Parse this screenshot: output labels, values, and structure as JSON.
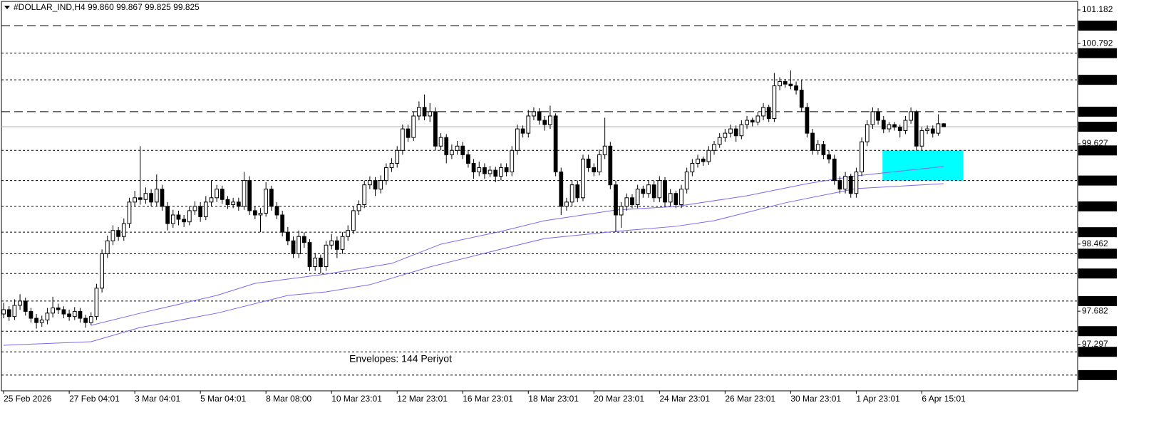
{
  "chart_data": {
    "type": "candlestick",
    "title": "#DOLLAR_IND,H4  99.860 99.867 99.825 99.825",
    "annotation": "Envelopes: 144 Periyot",
    "annotation_color": "#8b1a8b",
    "xlim": [
      -0.4,
      196.5
    ],
    "ylim": [
      96.757,
      101.281
    ],
    "xticks": [
      {
        "value": 0,
        "label": "25 Feb 2026"
      },
      {
        "value": 12,
        "label": "27 Feb 04:01"
      },
      {
        "value": 24,
        "label": "3 Mar 04:01"
      },
      {
        "value": 36,
        "label": "5 Mar 04:01"
      },
      {
        "value": 48,
        "label": "8 Mar 08:00"
      },
      {
        "value": 60,
        "label": "10 Mar 23:01"
      },
      {
        "value": 72,
        "label": "12 Mar 23:01"
      },
      {
        "value": 84,
        "label": "16 Mar 23:01"
      },
      {
        "value": 96,
        "label": "18 Mar 23:01"
      },
      {
        "value": 108,
        "label": "20 Mar 23:01"
      },
      {
        "value": 120,
        "label": "24 Mar 23:01"
      },
      {
        "value": 132,
        "label": "26 Mar 23:01"
      },
      {
        "value": 144,
        "label": "30 Mar 23:01"
      },
      {
        "value": 156,
        "label": "1 Apr 23:01"
      },
      {
        "value": 168,
        "label": "6 Apr 15:01"
      }
    ],
    "yticks": [
      101.182,
      100.792,
      99.627,
      98.462,
      97.682,
      97.297
    ],
    "levels": [
      {
        "value": 101,
        "label": "101.000",
        "style": "long-dash"
      },
      {
        "value": 100.68,
        "label": "100.680",
        "style": "short-dash"
      },
      {
        "value": 100.37,
        "label": "100.370",
        "style": "short-dash"
      },
      {
        "value": 100,
        "label": "100.000",
        "style": "long-dash"
      },
      {
        "value": 99.55,
        "label": "99.550",
        "style": "short-dash"
      },
      {
        "value": 99.2,
        "label": "99.200",
        "style": "short-dash"
      },
      {
        "value": 98.9,
        "label": "98.900",
        "style": "short-dash"
      },
      {
        "value": 98.6,
        "label": "98.600",
        "style": "short-dash"
      },
      {
        "value": 98.35,
        "label": "98.350",
        "style": "short-dash"
      },
      {
        "value": 98.12,
        "label": "98.120",
        "style": "short-dash"
      },
      {
        "value": 97.8,
        "label": "97.800",
        "style": "short-dash"
      },
      {
        "value": 97.45,
        "label": "97.450",
        "style": "short-dash"
      },
      {
        "value": 97.21,
        "label": "97.210",
        "style": "short-dash"
      },
      {
        "value": 96.94,
        "label": "96.940",
        "style": "short-dash"
      }
    ],
    "current_price": 99.825,
    "up_color": "#ffffff",
    "down_color": "#000000",
    "zone": {
      "color": "#00ffff",
      "x": [
        160.8,
        175.6
      ],
      "y": [
        99.2,
        99.55
      ]
    },
    "envelopes": [
      {
        "color": "#7b68ee",
        "x": [
          16,
          25,
          39,
          46,
          59,
          71,
          80,
          91,
          99,
          112,
          123,
          136,
          147,
          156,
          172
        ],
        "values": [
          97.518,
          97.659,
          97.865,
          98.006,
          98.113,
          98.237,
          98.461,
          98.61,
          98.734,
          98.858,
          98.899,
          99.023,
          99.164,
          99.255,
          99.363
        ]
      },
      {
        "color": "#7b68ee",
        "x": [
          0,
          16,
          25,
          39,
          52,
          59,
          67,
          78,
          91,
          99,
          112,
          123,
          130,
          143,
          156,
          172
        ],
        "values": [
          97.286,
          97.328,
          97.493,
          97.659,
          97.865,
          97.907,
          97.99,
          98.197,
          98.403,
          98.527,
          98.61,
          98.668,
          98.734,
          98.941,
          99.107,
          99.164
        ]
      }
    ],
    "ohlc": [
      [
        97.65,
        97.78,
        97.6,
        97.7
      ],
      [
        97.7,
        97.74,
        97.57,
        97.62
      ],
      [
        97.62,
        97.82,
        97.58,
        97.75
      ],
      [
        97.75,
        97.88,
        97.7,
        97.8
      ],
      [
        97.8,
        97.84,
        97.63,
        97.68
      ],
      [
        97.68,
        97.72,
        97.55,
        97.6
      ],
      [
        97.6,
        97.65,
        97.48,
        97.55
      ],
      [
        97.55,
        97.63,
        97.5,
        97.58
      ],
      [
        97.58,
        97.72,
        97.53,
        97.66
      ],
      [
        97.66,
        97.85,
        97.61,
        97.72
      ],
      [
        97.72,
        97.77,
        97.65,
        97.7
      ],
      [
        97.7,
        97.74,
        97.6,
        97.65
      ],
      [
        97.65,
        97.7,
        97.57,
        97.62
      ],
      [
        97.62,
        97.73,
        97.58,
        97.68
      ],
      [
        97.68,
        97.72,
        97.55,
        97.6
      ],
      [
        97.6,
        97.64,
        97.49,
        97.55
      ],
      [
        97.55,
        97.67,
        97.52,
        97.62
      ],
      [
        97.62,
        98.0,
        97.58,
        97.95
      ],
      [
        97.95,
        98.4,
        97.9,
        98.35
      ],
      [
        98.35,
        98.56,
        98.3,
        98.5
      ],
      [
        98.5,
        98.68,
        98.45,
        98.62
      ],
      [
        98.62,
        98.66,
        98.5,
        98.55
      ],
      [
        98.55,
        98.76,
        98.5,
        98.7
      ],
      [
        98.7,
        99.0,
        98.65,
        98.95
      ],
      [
        98.95,
        99.08,
        98.9,
        99.0
      ],
      [
        99.0,
        99.6,
        98.92,
        98.98
      ],
      [
        98.98,
        99.12,
        98.93,
        99.05
      ],
      [
        99.05,
        99.1,
        98.9,
        98.95
      ],
      [
        98.95,
        99.27,
        98.9,
        99.1
      ],
      [
        99.1,
        99.15,
        98.85,
        98.9
      ],
      [
        98.9,
        98.95,
        98.62,
        98.7
      ],
      [
        98.7,
        98.86,
        98.65,
        98.8
      ],
      [
        98.8,
        98.85,
        98.68,
        98.75
      ],
      [
        98.75,
        98.8,
        98.66,
        98.72
      ],
      [
        98.72,
        98.9,
        98.68,
        98.85
      ],
      [
        98.85,
        98.96,
        98.8,
        98.9
      ],
      [
        98.9,
        98.95,
        98.72,
        98.78
      ],
      [
        98.78,
        99.02,
        98.74,
        98.95
      ],
      [
        98.95,
        99.2,
        98.9,
        99.0
      ],
      [
        99.0,
        99.15,
        98.95,
        99.1
      ],
      [
        99.1,
        99.14,
        98.93,
        98.98
      ],
      [
        98.98,
        99.02,
        98.87,
        98.92
      ],
      [
        98.92,
        99.0,
        98.88,
        98.95
      ],
      [
        98.95,
        99.0,
        98.85,
        98.9
      ],
      [
        98.9,
        99.3,
        98.86,
        99.2
      ],
      [
        99.2,
        99.25,
        98.8,
        98.85
      ],
      [
        98.85,
        98.9,
        98.75,
        98.8
      ],
      [
        98.8,
        98.88,
        98.6,
        98.82
      ],
      [
        98.82,
        99.18,
        98.78,
        99.1
      ],
      [
        99.1,
        99.14,
        98.85,
        98.9
      ],
      [
        98.9,
        98.95,
        98.75,
        98.8
      ],
      [
        98.8,
        98.85,
        98.55,
        98.6
      ],
      [
        98.6,
        98.66,
        98.45,
        98.5
      ],
      [
        98.5,
        98.55,
        98.3,
        98.35
      ],
      [
        98.35,
        98.62,
        98.3,
        98.55
      ],
      [
        98.55,
        98.6,
        98.42,
        98.48
      ],
      [
        98.48,
        98.52,
        98.15,
        98.2
      ],
      [
        98.2,
        98.36,
        98.15,
        98.3
      ],
      [
        98.3,
        98.34,
        98.12,
        98.2
      ],
      [
        98.2,
        98.5,
        98.15,
        98.45
      ],
      [
        98.45,
        98.58,
        98.4,
        98.5
      ],
      [
        98.5,
        98.55,
        98.3,
        98.4
      ],
      [
        98.4,
        98.6,
        98.35,
        98.55
      ],
      [
        98.55,
        98.68,
        98.5,
        98.62
      ],
      [
        98.62,
        98.9,
        98.58,
        98.85
      ],
      [
        98.85,
        98.97,
        98.8,
        98.92
      ],
      [
        98.92,
        99.2,
        98.88,
        99.15
      ],
      [
        99.15,
        99.25,
        99.1,
        99.2
      ],
      [
        99.2,
        99.24,
        99.02,
        99.1
      ],
      [
        99.1,
        99.26,
        99.05,
        99.2
      ],
      [
        99.2,
        99.4,
        99.15,
        99.35
      ],
      [
        99.35,
        99.46,
        99.3,
        99.4
      ],
      [
        99.4,
        99.6,
        99.35,
        99.55
      ],
      [
        99.55,
        99.85,
        99.5,
        99.8
      ],
      [
        99.8,
        99.85,
        99.65,
        99.7
      ],
      [
        99.7,
        100.0,
        99.66,
        99.95
      ],
      [
        99.95,
        100.12,
        99.9,
        100.05
      ],
      [
        100.05,
        100.2,
        99.9,
        99.95
      ],
      [
        99.95,
        100.1,
        99.88,
        100.0
      ],
      [
        100.0,
        100.05,
        99.55,
        99.6
      ],
      [
        99.6,
        99.75,
        99.55,
        99.7
      ],
      [
        99.7,
        99.74,
        99.4,
        99.5
      ],
      [
        99.5,
        99.62,
        99.45,
        99.55
      ],
      [
        99.55,
        99.66,
        99.5,
        99.6
      ],
      [
        99.6,
        99.65,
        99.45,
        99.5
      ],
      [
        99.5,
        99.55,
        99.35,
        99.4
      ],
      [
        99.4,
        99.45,
        99.22,
        99.3
      ],
      [
        99.3,
        99.42,
        99.25,
        99.35
      ],
      [
        99.35,
        99.4,
        99.22,
        99.28
      ],
      [
        99.28,
        99.37,
        99.24,
        99.32
      ],
      [
        99.32,
        99.36,
        99.18,
        99.25
      ],
      [
        99.25,
        99.4,
        99.2,
        99.35
      ],
      [
        99.35,
        99.4,
        99.25,
        99.3
      ],
      [
        99.3,
        99.6,
        99.25,
        99.55
      ],
      [
        99.55,
        99.85,
        99.5,
        99.8
      ],
      [
        99.8,
        99.84,
        99.7,
        99.75
      ],
      [
        99.75,
        100.02,
        99.7,
        99.95
      ],
      [
        99.95,
        100.05,
        99.9,
        100.0
      ],
      [
        100.0,
        100.04,
        99.85,
        99.9
      ],
      [
        99.9,
        99.95,
        99.78,
        99.85
      ],
      [
        99.85,
        100.07,
        99.8,
        99.95
      ],
      [
        99.95,
        99.98,
        99.25,
        99.3
      ],
      [
        99.3,
        99.35,
        98.8,
        98.9
      ],
      [
        98.9,
        99.0,
        98.85,
        98.95
      ],
      [
        98.95,
        99.2,
        98.9,
        99.15
      ],
      [
        99.15,
        99.2,
        98.95,
        99.0
      ],
      [
        99.0,
        99.5,
        98.96,
        99.45
      ],
      [
        99.45,
        99.5,
        99.3,
        99.35
      ],
      [
        99.35,
        99.4,
        99.25,
        99.3
      ],
      [
        99.3,
        99.56,
        99.26,
        99.5
      ],
      [
        99.5,
        99.93,
        99.45,
        99.6
      ],
      [
        99.6,
        99.65,
        99.1,
        99.15
      ],
      [
        99.15,
        99.2,
        98.6,
        98.8
      ],
      [
        98.8,
        98.95,
        98.65,
        98.9
      ],
      [
        98.9,
        99.05,
        98.85,
        99.0
      ],
      [
        99.0,
        99.04,
        98.88,
        98.92
      ],
      [
        98.92,
        99.15,
        98.88,
        99.1
      ],
      [
        99.1,
        99.14,
        99.0,
        99.05
      ],
      [
        99.05,
        99.2,
        99.0,
        99.15
      ],
      [
        99.15,
        99.2,
        98.95,
        99.0
      ],
      [
        99.0,
        99.25,
        98.95,
        99.2
      ],
      [
        99.2,
        99.24,
        98.9,
        98.95
      ],
      [
        98.95,
        99.1,
        98.9,
        99.05
      ],
      [
        99.05,
        99.08,
        98.88,
        98.92
      ],
      [
        98.92,
        99.15,
        98.88,
        99.1
      ],
      [
        99.1,
        99.35,
        99.05,
        99.3
      ],
      [
        99.3,
        99.45,
        99.25,
        99.4
      ],
      [
        99.4,
        99.5,
        99.35,
        99.45
      ],
      [
        99.45,
        99.48,
        99.37,
        99.42
      ],
      [
        99.42,
        99.6,
        99.38,
        99.55
      ],
      [
        99.55,
        99.66,
        99.5,
        99.62
      ],
      [
        99.62,
        99.75,
        99.58,
        99.7
      ],
      [
        99.7,
        99.8,
        99.65,
        99.75
      ],
      [
        99.75,
        99.85,
        99.7,
        99.8
      ],
      [
        99.8,
        99.84,
        99.65,
        99.72
      ],
      [
        99.72,
        99.9,
        99.68,
        99.85
      ],
      [
        99.85,
        99.95,
        99.8,
        99.9
      ],
      [
        99.9,
        99.93,
        99.83,
        99.88
      ],
      [
        99.88,
        100.0,
        99.84,
        99.95
      ],
      [
        99.95,
        100.1,
        99.9,
        100.05
      ],
      [
        100.05,
        100.08,
        99.88,
        99.92
      ],
      [
        99.92,
        100.45,
        99.88,
        100.3
      ],
      [
        100.3,
        100.4,
        100.25,
        100.35
      ],
      [
        100.35,
        100.38,
        100.28,
        100.32
      ],
      [
        100.32,
        100.48,
        100.26,
        100.3
      ],
      [
        100.3,
        100.35,
        100.2,
        100.25
      ],
      [
        100.25,
        100.37,
        100.0,
        100.05
      ],
      [
        100.05,
        100.1,
        99.7,
        99.75
      ],
      [
        99.75,
        99.8,
        99.5,
        99.55
      ],
      [
        99.55,
        99.67,
        99.5,
        99.62
      ],
      [
        99.62,
        99.66,
        99.45,
        99.5
      ],
      [
        99.5,
        99.55,
        99.4,
        99.45
      ],
      [
        99.45,
        99.5,
        99.15,
        99.2
      ],
      [
        99.2,
        99.25,
        99.05,
        99.1
      ],
      [
        99.1,
        99.3,
        99.05,
        99.25
      ],
      [
        99.25,
        99.28,
        99.0,
        99.05
      ],
      [
        99.05,
        99.35,
        99.0,
        99.3
      ],
      [
        99.3,
        99.7,
        99.25,
        99.65
      ],
      [
        99.65,
        99.9,
        99.6,
        99.85
      ],
      [
        99.85,
        100.05,
        99.8,
        100.0
      ],
      [
        100.0,
        100.04,
        99.85,
        99.9
      ],
      [
        99.9,
        99.95,
        99.75,
        99.8
      ],
      [
        99.8,
        99.88,
        99.76,
        99.85
      ],
      [
        99.85,
        99.88,
        99.78,
        99.82
      ],
      [
        99.82,
        99.85,
        99.7,
        99.78
      ],
      [
        99.78,
        99.95,
        99.74,
        99.9
      ],
      [
        99.9,
        100.05,
        99.86,
        100.0
      ],
      [
        100.0,
        100.02,
        99.55,
        99.6
      ],
      [
        99.6,
        99.82,
        99.55,
        99.78
      ],
      [
        99.78,
        99.84,
        99.74,
        99.8
      ],
      [
        99.8,
        99.84,
        99.7,
        99.75
      ],
      [
        99.75,
        99.97,
        99.72,
        99.86
      ],
      [
        99.86,
        99.867,
        99.825,
        99.825
      ]
    ]
  }
}
